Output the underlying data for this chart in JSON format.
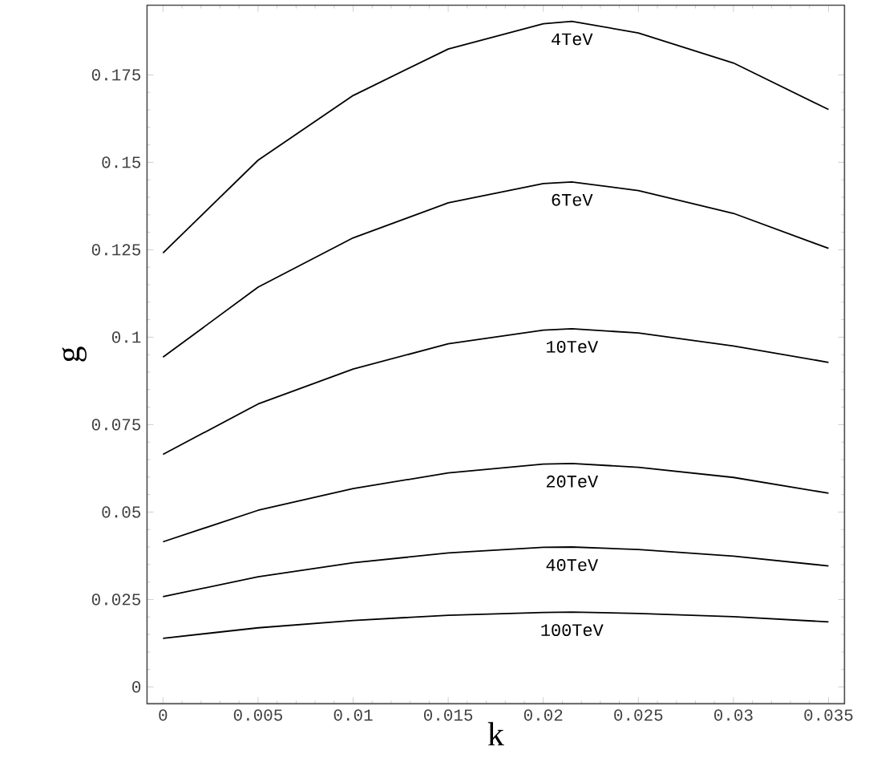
{
  "chart_data": {
    "type": "line",
    "xlabel": "k",
    "ylabel": "g",
    "xlim": [
      -0.00084,
      0.03584
    ],
    "ylim": [
      -0.0048,
      0.1949
    ],
    "xticks": [
      0,
      0.005,
      0.01,
      0.015,
      0.02,
      0.025,
      0.03,
      0.035
    ],
    "yticks": [
      0,
      0.025,
      0.05,
      0.075,
      0.1,
      0.125,
      0.15,
      0.175
    ],
    "x": [
      0,
      0.005,
      0.01,
      0.015,
      0.02,
      0.0215,
      0.025,
      0.03,
      0.035
    ],
    "series": [
      {
        "name": "4TeV",
        "color": "#000000",
        "values": [
          0.1241,
          0.1506,
          0.1691,
          0.1824,
          0.1896,
          0.1903,
          0.187,
          0.1784,
          0.1651
        ]
      },
      {
        "name": "6TeV",
        "color": "#000000",
        "values": [
          0.0943,
          0.1143,
          0.1284,
          0.1384,
          0.1439,
          0.1444,
          0.1419,
          0.1354,
          0.1254
        ]
      },
      {
        "name": "10TeV",
        "color": "#000000",
        "values": [
          0.0665,
          0.0809,
          0.0909,
          0.0981,
          0.102,
          0.1024,
          0.1012,
          0.0975,
          0.0928
        ]
      },
      {
        "name": "20TeV",
        "color": "#000000",
        "values": [
          0.0415,
          0.0505,
          0.0567,
          0.0612,
          0.0637,
          0.0639,
          0.0628,
          0.0599,
          0.0554
        ]
      },
      {
        "name": "40TeV",
        "color": "#000000",
        "values": [
          0.0258,
          0.0315,
          0.0355,
          0.0383,
          0.0399,
          0.04,
          0.0393,
          0.0374,
          0.0346
        ]
      },
      {
        "name": "100TeV",
        "color": "#000000",
        "values": [
          0.0139,
          0.0169,
          0.019,
          0.0205,
          0.0213,
          0.0214,
          0.021,
          0.0201,
          0.0186
        ]
      }
    ]
  }
}
